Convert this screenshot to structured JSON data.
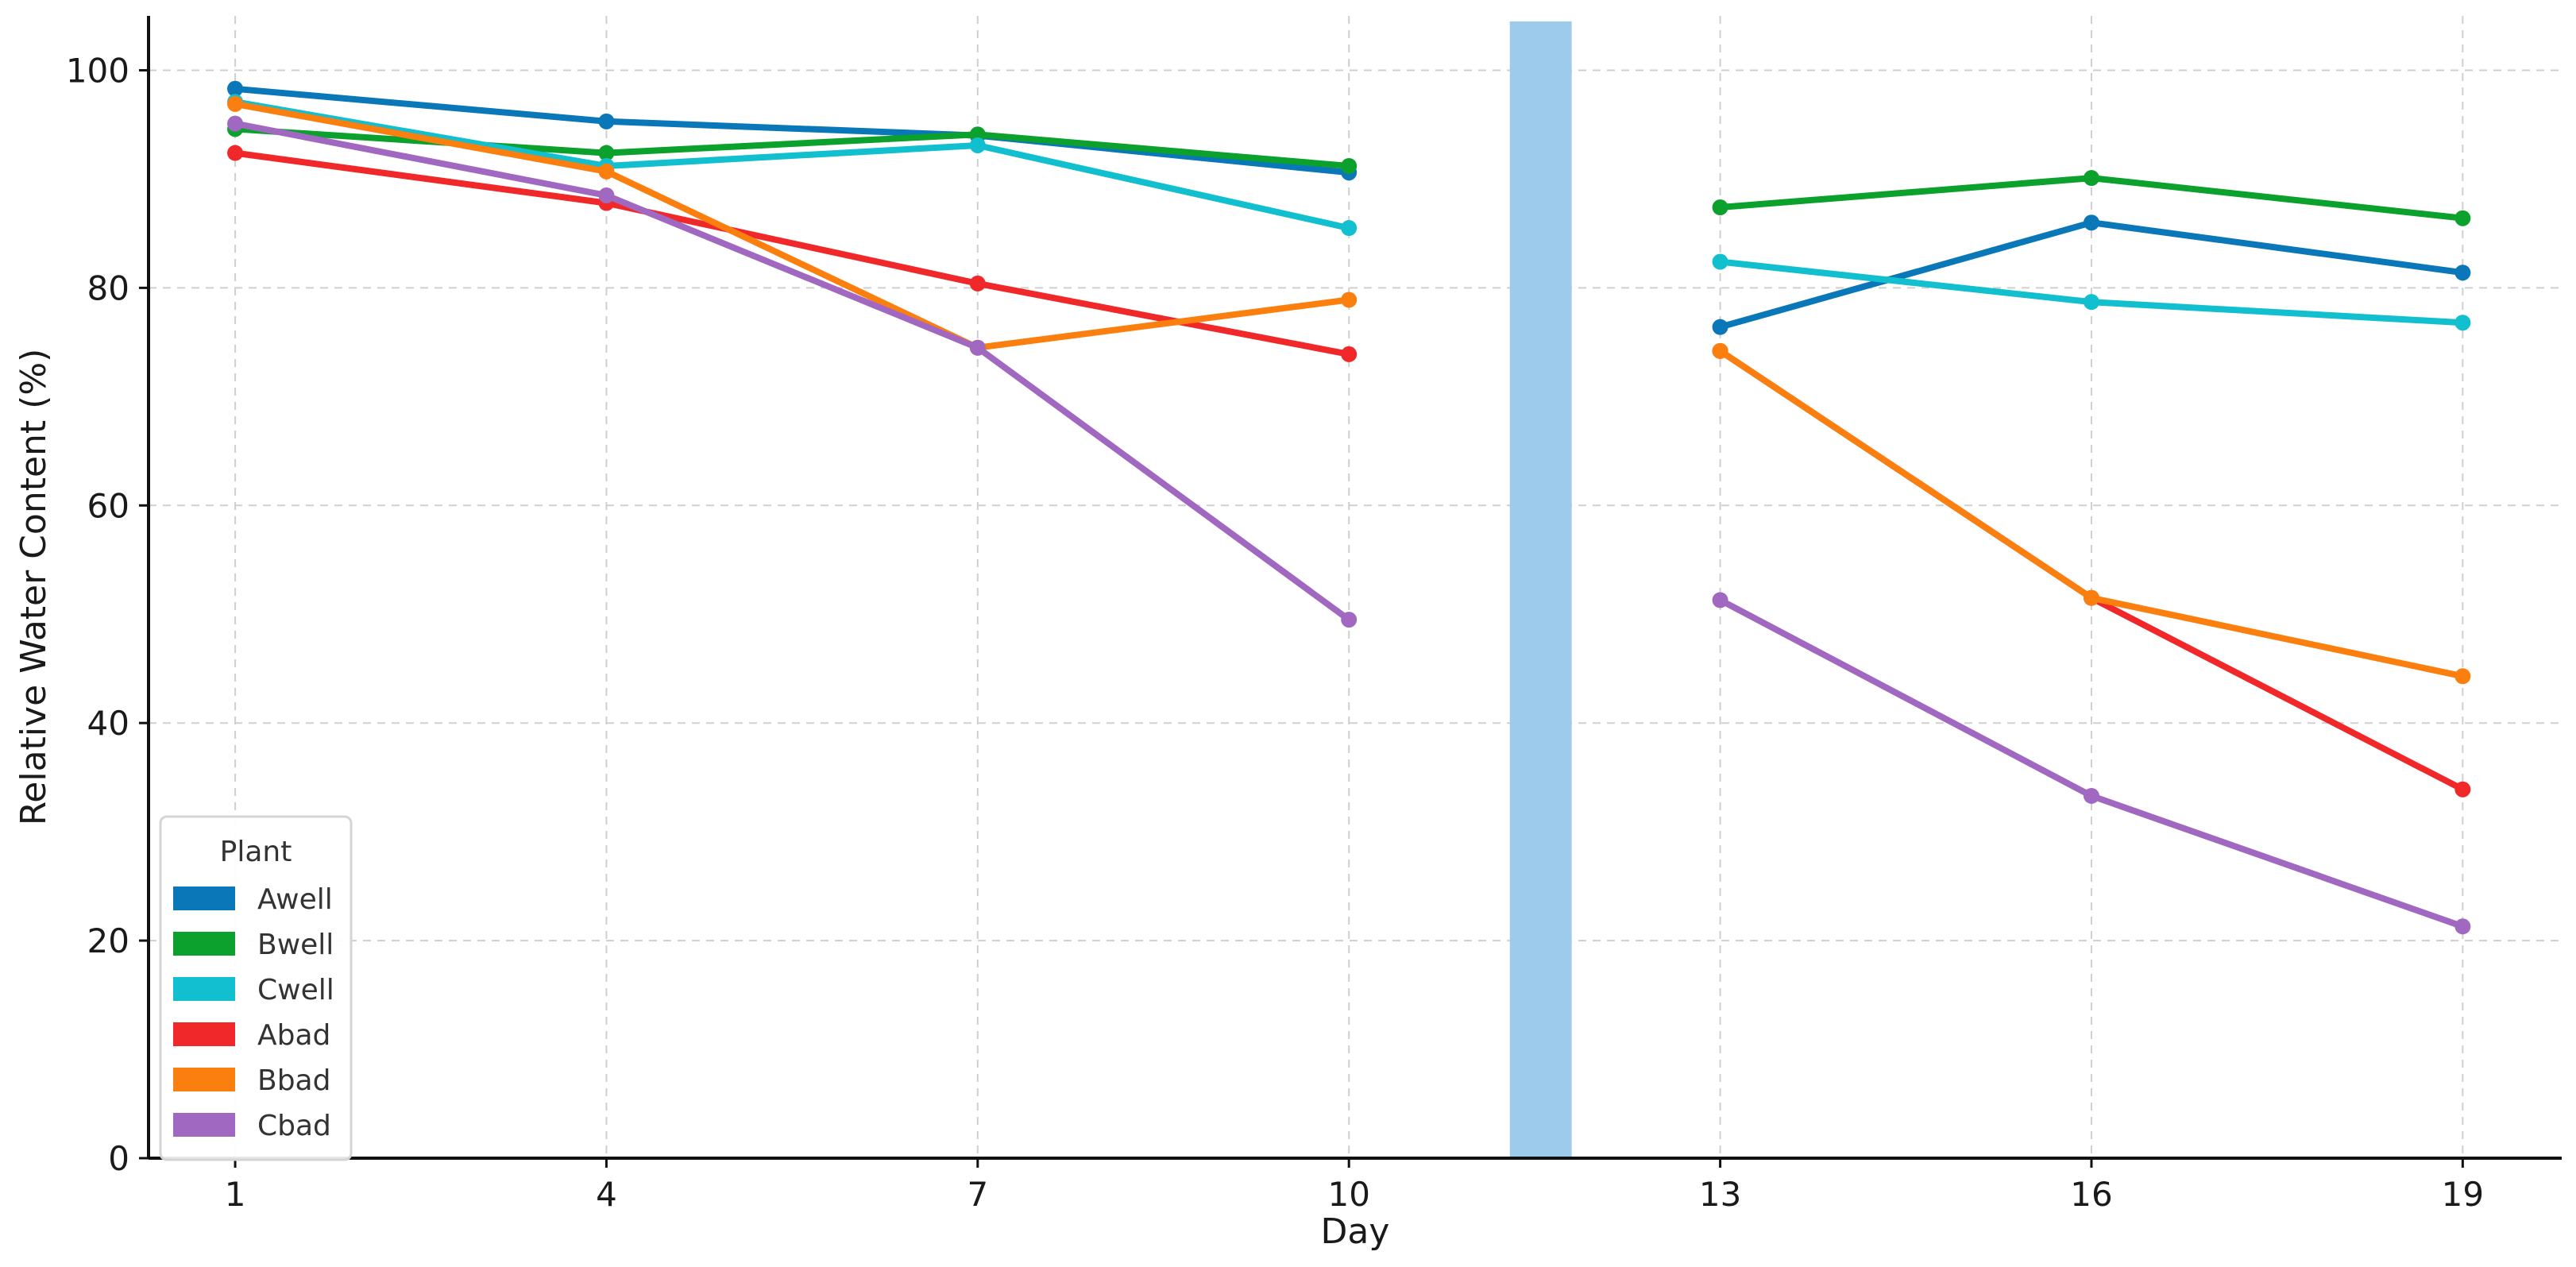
{
  "chart_data": {
    "type": "line",
    "title": "",
    "xlabel": "Day",
    "ylabel": "Relative Water Content (%)",
    "xlim": [
      0.3,
      19.8
    ],
    "ylim": [
      0,
      105
    ],
    "xticks": [
      1,
      4,
      7,
      10,
      13,
      16,
      19
    ],
    "yticks": [
      0,
      20,
      40,
      60,
      80,
      100
    ],
    "grid": true,
    "legend": {
      "title": "Plant",
      "placement": "lower-left"
    },
    "shaded_band": {
      "x_from": 11.3,
      "x_to": 11.8,
      "color": "#9ccbec"
    },
    "segments": [
      [
        1,
        4,
        7,
        10
      ],
      [
        13,
        16,
        19
      ]
    ],
    "series": [
      {
        "name": "Awell",
        "color": "#0a77b8",
        "x": [
          1,
          4,
          7,
          10,
          13,
          16,
          19
        ],
        "values": [
          98.3,
          95.3,
          94.0,
          90.6,
          76.4,
          86.0,
          81.4
        ]
      },
      {
        "name": "Bwell",
        "color": "#0ba12c",
        "x": [
          1,
          4,
          7,
          10,
          13,
          16,
          19
        ],
        "values": [
          94.6,
          92.4,
          94.1,
          91.2,
          87.4,
          90.1,
          86.4
        ]
      },
      {
        "name": "Cwell",
        "color": "#12bfcf",
        "x": [
          1,
          4,
          7,
          10,
          13,
          16,
          19
        ],
        "values": [
          97.1,
          91.2,
          93.1,
          85.5,
          82.4,
          78.7,
          76.8
        ]
      },
      {
        "name": "Abad",
        "color": "#f0282a",
        "x": [
          1,
          4,
          7,
          10,
          13,
          16,
          19
        ],
        "values": [
          92.4,
          87.8,
          80.4,
          73.9,
          74.2,
          51.5,
          33.9
        ]
      },
      {
        "name": "Bbad",
        "color": "#fb7f0e",
        "x": [
          1,
          4,
          7,
          10,
          13,
          16,
          19
        ],
        "values": [
          96.9,
          90.7,
          74.5,
          78.9,
          74.2,
          51.5,
          44.3
        ]
      },
      {
        "name": "Cbad",
        "color": "#a068c0",
        "x": [
          1,
          4,
          7,
          10,
          13,
          16,
          19
        ],
        "values": [
          95.1,
          88.5,
          74.5,
          49.5,
          51.3,
          33.3,
          21.3
        ]
      }
    ]
  }
}
